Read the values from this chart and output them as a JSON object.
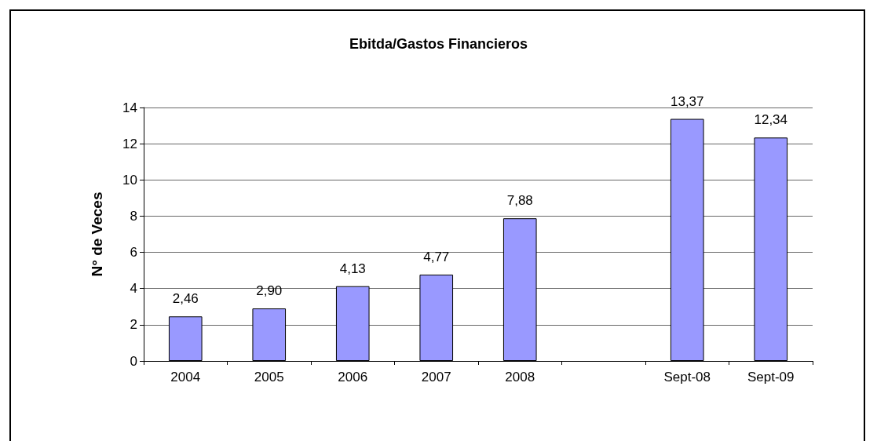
{
  "chart_data": {
    "type": "bar",
    "title": "Ebitda/Gastos Financieros",
    "ylabel": "N° de Veces",
    "categories": [
      "2004",
      "2005",
      "2006",
      "2007",
      "2008",
      null,
      "Sept-08",
      "Sept-09"
    ],
    "values": [
      2.46,
      2.9,
      4.13,
      4.77,
      7.88,
      null,
      13.37,
      12.34
    ],
    "value_labels": [
      "2,46",
      "2,90",
      "4,13",
      "4,77",
      "7,88",
      null,
      "13,37",
      "12,34"
    ],
    "color": "#9999ff",
    "ylim": [
      0,
      14
    ],
    "yticks": [
      0,
      2,
      4,
      6,
      8,
      10,
      12,
      14
    ],
    "grid": "y"
  }
}
